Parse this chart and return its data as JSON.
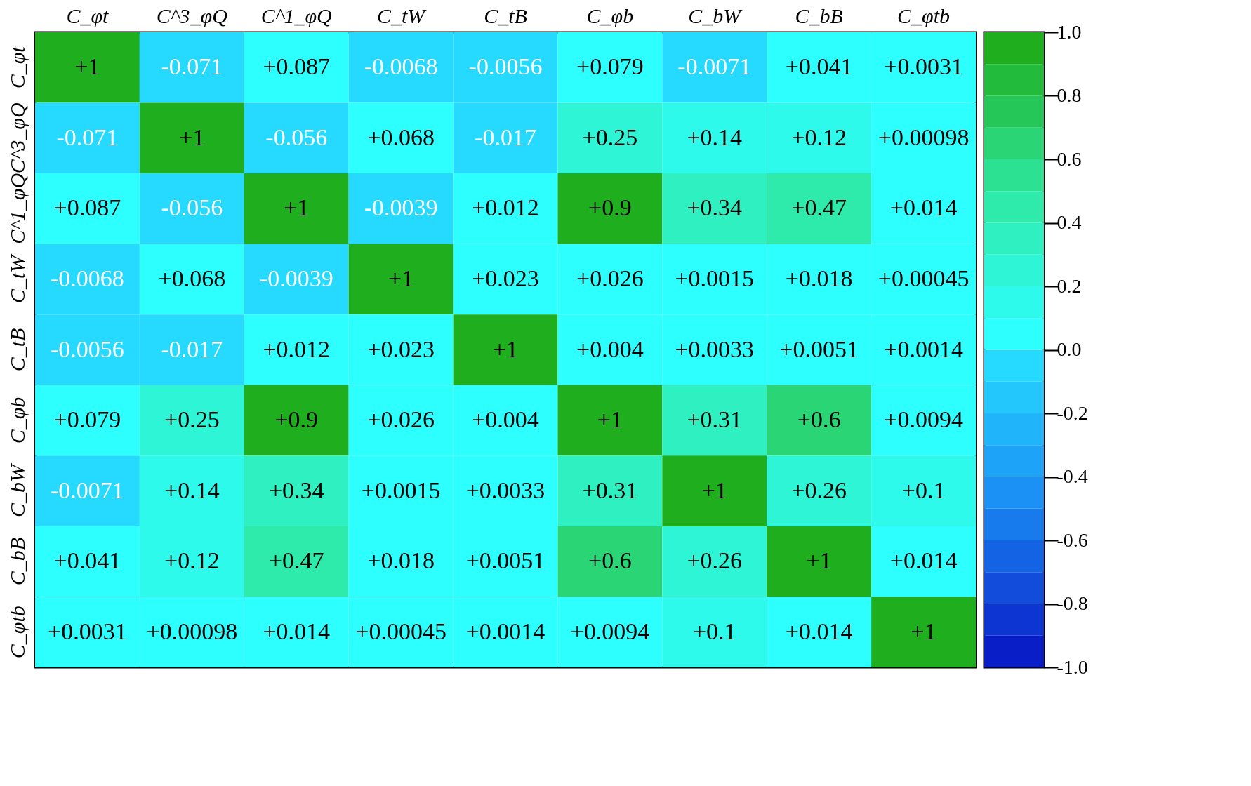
{
  "chart_data": {
    "type": "heatmap",
    "categories": [
      "C_φt",
      "C^3_φQ",
      "C^1_φQ",
      "C_tW",
      "C_tB",
      "C_φb",
      "C_bW",
      "C_bB",
      "C_φtb"
    ],
    "y_categories": [
      "C_φt",
      "C^3_φQ",
      "C^1_φQ",
      "C_tW",
      "C_tB",
      "C_φb",
      "C_bW",
      "C_bB",
      "C_φtb"
    ],
    "cells": [
      [
        1,
        -0.071,
        0.087,
        -0.0068,
        -0.0056,
        0.079,
        -0.0071,
        0.041,
        0.0031
      ],
      [
        -0.071,
        1,
        -0.056,
        0.068,
        -0.017,
        0.25,
        0.14,
        0.12,
        0.00098
      ],
      [
        0.087,
        -0.056,
        1,
        -0.0039,
        0.012,
        0.9,
        0.34,
        0.47,
        0.014
      ],
      [
        -0.0068,
        0.068,
        -0.0039,
        1,
        0.023,
        0.026,
        0.0015,
        0.018,
        0.00045
      ],
      [
        -0.0056,
        -0.017,
        0.012,
        0.023,
        1,
        0.004,
        0.0033,
        0.0051,
        0.0014
      ],
      [
        0.079,
        0.25,
        0.9,
        0.026,
        0.004,
        1,
        0.31,
        0.6,
        0.0094
      ],
      [
        -0.0071,
        0.14,
        0.34,
        0.0015,
        0.0033,
        0.31,
        1,
        0.26,
        0.1
      ],
      [
        0.041,
        0.12,
        0.47,
        0.018,
        0.0051,
        0.6,
        0.26,
        1,
        0.014
      ],
      [
        0.0031,
        0.00098,
        0.014,
        0.00045,
        0.0014,
        0.0094,
        0.1,
        0.014,
        1
      ]
    ],
    "cell_labels": [
      [
        "+1",
        "-0.071",
        "+0.087",
        "-0.0068",
        "-0.0056",
        "+0.079",
        "-0.0071",
        "+0.041",
        "+0.0031"
      ],
      [
        "-0.071",
        "+1",
        "-0.056",
        "+0.068",
        "-0.017",
        "+0.25",
        "+0.14",
        "+0.12",
        "+0.00098"
      ],
      [
        "+0.087",
        "-0.056",
        "+1",
        "-0.0039",
        "+0.012",
        "+0.9",
        "+0.34",
        "+0.47",
        "+0.014"
      ],
      [
        "-0.0068",
        "+0.068",
        "-0.0039",
        "+1",
        "+0.023",
        "+0.026",
        "+0.0015",
        "+0.018",
        "+0.00045"
      ],
      [
        "-0.0056",
        "-0.017",
        "+0.012",
        "+0.023",
        "+1",
        "+0.004",
        "+0.0033",
        "+0.0051",
        "+0.0014"
      ],
      [
        "+0.079",
        "+0.25",
        "+0.9",
        "+0.026",
        "+0.004",
        "+1",
        "+0.31",
        "+0.6",
        "+0.0094"
      ],
      [
        "-0.0071",
        "+0.14",
        "+0.34",
        "+0.0015",
        "+0.0033",
        "+0.31",
        "+1",
        "+0.26",
        "+0.1"
      ],
      [
        "+0.041",
        "+0.12",
        "+0.47",
        "+0.018",
        "+0.0051",
        "+0.6",
        "+0.26",
        "+1",
        "+0.014"
      ],
      [
        "+0.0031",
        "+0.00098",
        "+0.014",
        "+0.00045",
        "+0.0014",
        "+0.0094",
        "+0.1",
        "+0.014",
        "+1"
      ]
    ],
    "clim": [
      -1,
      1
    ],
    "cticks": [
      {
        "value": -1,
        "label": "-1.0"
      },
      {
        "value": -0.8,
        "label": "-0.8"
      },
      {
        "value": -0.6,
        "label": "-0.6"
      },
      {
        "value": -0.4,
        "label": "-0.4"
      },
      {
        "value": -0.2,
        "label": "-0.2"
      },
      {
        "value": 0,
        "label": "0.0"
      },
      {
        "value": 0.2,
        "label": "0.2"
      },
      {
        "value": 0.4,
        "label": "0.4"
      },
      {
        "value": 0.6,
        "label": "0.6"
      },
      {
        "value": 0.8,
        "label": "0.8"
      },
      {
        "value": 1,
        "label": "1.0"
      }
    ]
  }
}
